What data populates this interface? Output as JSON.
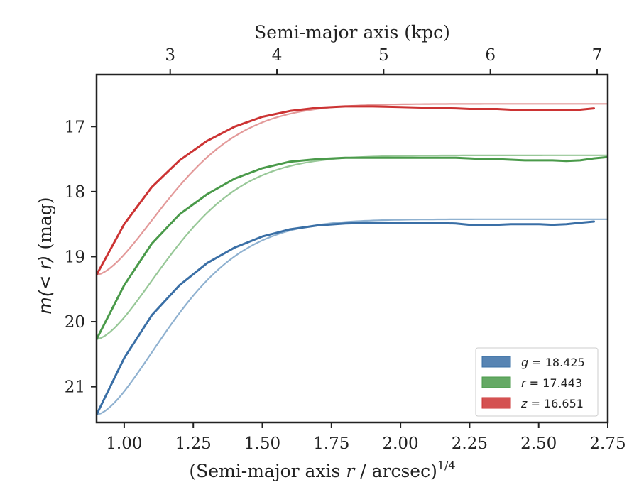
{
  "chart_data": {
    "type": "line",
    "title": "",
    "xlabel_main": "(Semi-major axis ",
    "xlabel_var": "r",
    "xlabel_rest": " / arcsec)",
    "xlabel_sup": "1/4",
    "ylabel_main": "m",
    "ylabel_var": "(< r)",
    "ylabel_unit": " (mag)",
    "top_xlabel": "Semi-major axis (kpc)",
    "xlim": [
      0.9,
      2.75
    ],
    "ylim": [
      16.2,
      21.55
    ],
    "y_inverted": true,
    "top_xlim_kpc": [
      2.31,
      7.1
    ],
    "x_ticks": [
      1.0,
      1.25,
      1.5,
      1.75,
      2.0,
      2.25,
      2.5,
      2.75
    ],
    "x_tick_labels": [
      "1.00",
      "1.25",
      "1.50",
      "1.75",
      "2.00",
      "2.25",
      "2.50",
      "2.75"
    ],
    "y_ticks": [
      17,
      18,
      19,
      20,
      21
    ],
    "y_tick_labels": [
      "17",
      "18",
      "19",
      "20",
      "21"
    ],
    "top_ticks_kpc": [
      3,
      4,
      5,
      6,
      7
    ],
    "top_tick_labels": [
      "3",
      "4",
      "5",
      "6",
      "7"
    ],
    "legend_position": "lower-right",
    "series": [
      {
        "name": "g = 18.425",
        "legend_var": "g",
        "legend_value": "= 18.425",
        "color": "#3a6fa6",
        "fit_color": "#8fb1d0",
        "asymptote": 18.425,
        "x": [
          0.9,
          1.0,
          1.1,
          1.2,
          1.3,
          1.4,
          1.5,
          1.6,
          1.7,
          1.8,
          1.9,
          2.0,
          2.1,
          2.2,
          2.25,
          2.3,
          2.35,
          2.4,
          2.45,
          2.5,
          2.55,
          2.6,
          2.65,
          2.7
        ],
        "y": [
          21.43,
          20.56,
          19.9,
          19.44,
          19.1,
          18.86,
          18.69,
          18.58,
          18.52,
          18.49,
          18.48,
          18.48,
          18.48,
          18.49,
          18.51,
          18.51,
          18.51,
          18.5,
          18.5,
          18.5,
          18.51,
          18.5,
          18.48,
          18.46
        ]
      },
      {
        "name": "r = 17.443",
        "legend_var": "r",
        "legend_value": "= 17.443",
        "color": "#4a9a4a",
        "fit_color": "#98c898",
        "asymptote": 17.443,
        "x": [
          0.9,
          1.0,
          1.1,
          1.2,
          1.3,
          1.4,
          1.5,
          1.6,
          1.7,
          1.8,
          1.9,
          2.0,
          2.1,
          2.2,
          2.25,
          2.3,
          2.35,
          2.4,
          2.45,
          2.5,
          2.55,
          2.6,
          2.65,
          2.7,
          2.75
        ],
        "y": [
          20.27,
          19.44,
          18.8,
          18.35,
          18.04,
          17.8,
          17.64,
          17.54,
          17.5,
          17.48,
          17.48,
          17.48,
          17.48,
          17.48,
          17.49,
          17.5,
          17.5,
          17.51,
          17.52,
          17.52,
          17.52,
          17.53,
          17.52,
          17.49,
          17.47
        ]
      },
      {
        "name": "z = 16.651",
        "legend_var": "z",
        "legend_value": "= 16.651",
        "color": "#cc3333",
        "fit_color": "#e39a9a",
        "asymptote": 16.651,
        "x": [
          0.9,
          1.0,
          1.1,
          1.2,
          1.3,
          1.4,
          1.5,
          1.6,
          1.7,
          1.8,
          1.9,
          2.0,
          2.1,
          2.2,
          2.25,
          2.3,
          2.35,
          2.4,
          2.45,
          2.5,
          2.55,
          2.6,
          2.65,
          2.7
        ],
        "y": [
          19.28,
          18.5,
          17.93,
          17.52,
          17.22,
          17.0,
          16.85,
          16.76,
          16.71,
          16.69,
          16.69,
          16.7,
          16.71,
          16.72,
          16.73,
          16.73,
          16.73,
          16.74,
          16.74,
          16.74,
          16.74,
          16.75,
          16.74,
          16.72
        ]
      }
    ]
  }
}
